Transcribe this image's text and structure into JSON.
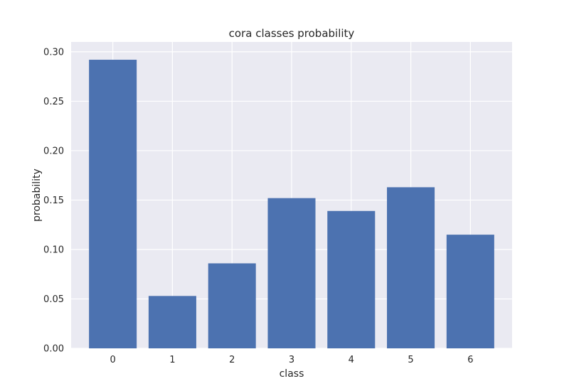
{
  "chart_data": {
    "type": "bar",
    "title": "cora classes probability",
    "xlabel": "class",
    "ylabel": "probability",
    "categories": [
      "0",
      "1",
      "2",
      "3",
      "4",
      "5",
      "6"
    ],
    "values": [
      0.292,
      0.053,
      0.086,
      0.152,
      0.139,
      0.163,
      0.115
    ],
    "ylim": [
      0,
      0.31
    ],
    "yticks": [
      "0.00",
      "0.05",
      "0.10",
      "0.15",
      "0.20",
      "0.25",
      "0.30"
    ],
    "ytick_values": [
      0,
      0.05,
      0.1,
      0.15,
      0.2,
      0.25,
      0.3
    ],
    "grid": true,
    "bar_color": "#4c72b0",
    "background_color": "#eaeaf2"
  }
}
